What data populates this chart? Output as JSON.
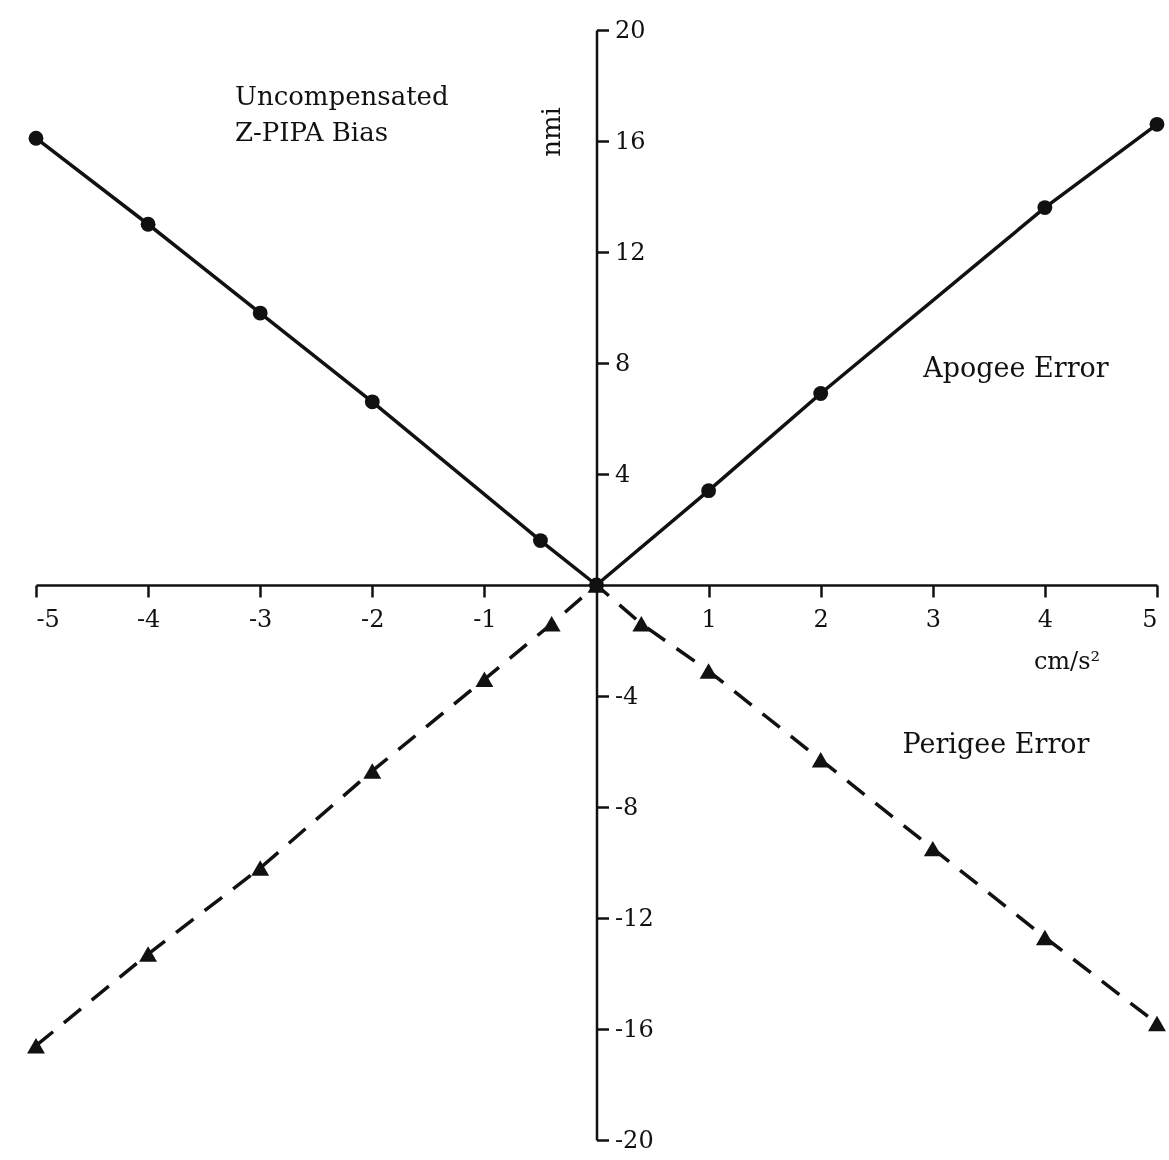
{
  "chart_data": {
    "type": "line",
    "xlabel": "cm/s²",
    "ylabel": "nmi",
    "annotations": [
      "Uncompensated Z-PIPA Bias"
    ],
    "xlim": [
      -5,
      5
    ],
    "ylim": [
      -20,
      20
    ],
    "xticks": [
      -5,
      -4,
      -3,
      -2,
      -1,
      1,
      2,
      3,
      4,
      5
    ],
    "yticks": [
      -20,
      -16,
      -12,
      -8,
      -4,
      4,
      8,
      12,
      16,
      20
    ],
    "grid": false,
    "series": [
      {
        "name": "Apogee Error",
        "color": "#111111",
        "marker": "circle",
        "line_style": "solid",
        "x": [
          -5,
          -4,
          -3,
          -2,
          -0.5,
          0,
          1,
          2,
          4,
          5
        ],
        "values": [
          16.1,
          13,
          9.8,
          6.6,
          1.6,
          0,
          3.4,
          6.9,
          13.6,
          16.6
        ]
      },
      {
        "name": "Perigee Error",
        "color": "#111111",
        "marker": "triangle",
        "line_style": "dashed",
        "x": [
          -5,
          -4,
          -3,
          -2,
          -1,
          -0.4,
          0,
          0.4,
          1,
          2,
          3,
          4,
          5
        ],
        "values": [
          -16.6,
          -13.3,
          -10.2,
          -6.7,
          -3.4,
          -1.4,
          0,
          -1.4,
          -3.1,
          -6.3,
          -9.5,
          -12.7,
          -15.8
        ]
      }
    ]
  }
}
